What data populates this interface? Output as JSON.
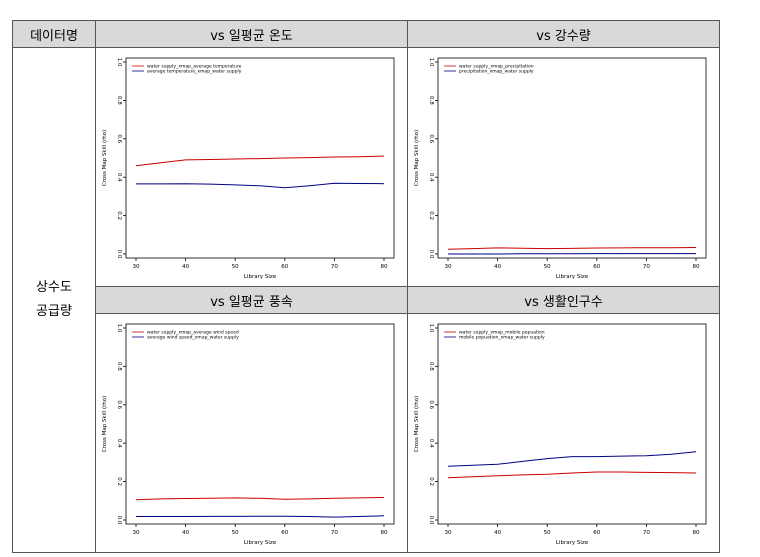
{
  "table": {
    "col0_header": "데이터명",
    "row_label_line1": "상수도",
    "row_label_line2": "공급량",
    "headers": [
      "vs 일평균 온도",
      "vs 강수량",
      "vs 일평균 풍속",
      "vs 생활인구수"
    ]
  },
  "chart_data": [
    {
      "type": "line",
      "title": "vs 일평균 온도",
      "xlabel": "Library Size",
      "ylabel": "Cross Map Skill (rho)",
      "xlim": [
        30,
        80
      ],
      "ylim": [
        0,
        1
      ],
      "xticks": [
        "30",
        "40",
        "50",
        "60",
        "70",
        "80"
      ],
      "yticks": [
        "0.0",
        "0.2",
        "0.4",
        "0.6",
        "0.8",
        "1.0"
      ],
      "legend_position": "top-left",
      "x": [
        30,
        35,
        40,
        45,
        50,
        55,
        60,
        65,
        70,
        75,
        80
      ],
      "series": [
        {
          "name": "water supply_xmap_average temperature",
          "color": "#cc0000",
          "values": [
            0.46,
            0.475,
            0.49,
            0.492,
            0.495,
            0.497,
            0.5,
            0.502,
            0.505,
            0.507,
            0.51
          ]
        },
        {
          "name": "average temperature_xmap_water supply",
          "color": "#000080",
          "values": [
            0.365,
            0.365,
            0.366,
            0.364,
            0.36,
            0.355,
            0.345,
            0.355,
            0.368,
            0.367,
            0.366
          ]
        }
      ]
    },
    {
      "type": "line",
      "title": "vs 강수량",
      "xlabel": "Library Size",
      "ylabel": "Cross Map Skill (rho)",
      "xlim": [
        30,
        80
      ],
      "ylim": [
        0,
        1
      ],
      "xticks": [
        "30",
        "40",
        "50",
        "60",
        "70",
        "80"
      ],
      "yticks": [
        "0.0",
        "0.2",
        "0.4",
        "0.6",
        "0.8",
        "1.0"
      ],
      "legend_position": "top-left",
      "x": [
        30,
        35,
        40,
        45,
        50,
        55,
        60,
        65,
        70,
        75,
        80
      ],
      "series": [
        {
          "name": "water supply_xmap_precipitation",
          "color": "#cc0000",
          "values": [
            0.025,
            0.028,
            0.032,
            0.03,
            0.028,
            0.029,
            0.031,
            0.032,
            0.033,
            0.033,
            0.034
          ]
        },
        {
          "name": "precipitation_xmap_water supply",
          "color": "#000080",
          "values": [
            0.0,
            0.0,
            0.0,
            0.001,
            0.001,
            0.001,
            0.002,
            0.002,
            0.002,
            0.002,
            0.002
          ]
        }
      ]
    },
    {
      "type": "line",
      "title": "vs 일평균 풍속",
      "xlabel": "Library Size",
      "ylabel": "Cross Map Skill (rho)",
      "xlim": [
        30,
        80
      ],
      "ylim": [
        0,
        1
      ],
      "xticks": [
        "30",
        "40",
        "50",
        "60",
        "70",
        "80"
      ],
      "yticks": [
        "0.0",
        "0.2",
        "0.4",
        "0.6",
        "0.8",
        "1.0"
      ],
      "legend_position": "top-left",
      "x": [
        30,
        35,
        40,
        45,
        50,
        55,
        60,
        65,
        70,
        75,
        80
      ],
      "series": [
        {
          "name": "water supply_xmap_average wind speed",
          "color": "#cc0000",
          "values": [
            0.105,
            0.11,
            0.112,
            0.113,
            0.115,
            0.113,
            0.108,
            0.11,
            0.113,
            0.115,
            0.117
          ]
        },
        {
          "name": "average wind speed_xmap_water supply",
          "color": "#000080",
          "values": [
            0.018,
            0.018,
            0.018,
            0.019,
            0.019,
            0.02,
            0.02,
            0.018,
            0.015,
            0.018,
            0.022
          ]
        }
      ]
    },
    {
      "type": "line",
      "title": "vs 생활인구수",
      "xlabel": "Library Size",
      "ylabel": "Cross Map Skill (rho)",
      "xlim": [
        30,
        80
      ],
      "ylim": [
        0,
        1
      ],
      "xticks": [
        "30",
        "40",
        "50",
        "60",
        "70",
        "80"
      ],
      "yticks": [
        "0.0",
        "0.2",
        "0.4",
        "0.6",
        "0.8",
        "1.0"
      ],
      "legend_position": "top-left",
      "x": [
        30,
        35,
        40,
        45,
        50,
        55,
        60,
        65,
        70,
        75,
        80
      ],
      "series": [
        {
          "name": "water supply_xmap_mobile popuation",
          "color": "#cc0000",
          "values": [
            0.22,
            0.225,
            0.23,
            0.235,
            0.238,
            0.245,
            0.25,
            0.25,
            0.248,
            0.247,
            0.245
          ]
        },
        {
          "name": "mobile popuation_xmap_water supply",
          "color": "#000080",
          "values": [
            0.28,
            0.285,
            0.29,
            0.305,
            0.32,
            0.33,
            0.33,
            0.333,
            0.335,
            0.342,
            0.355
          ]
        }
      ]
    }
  ]
}
